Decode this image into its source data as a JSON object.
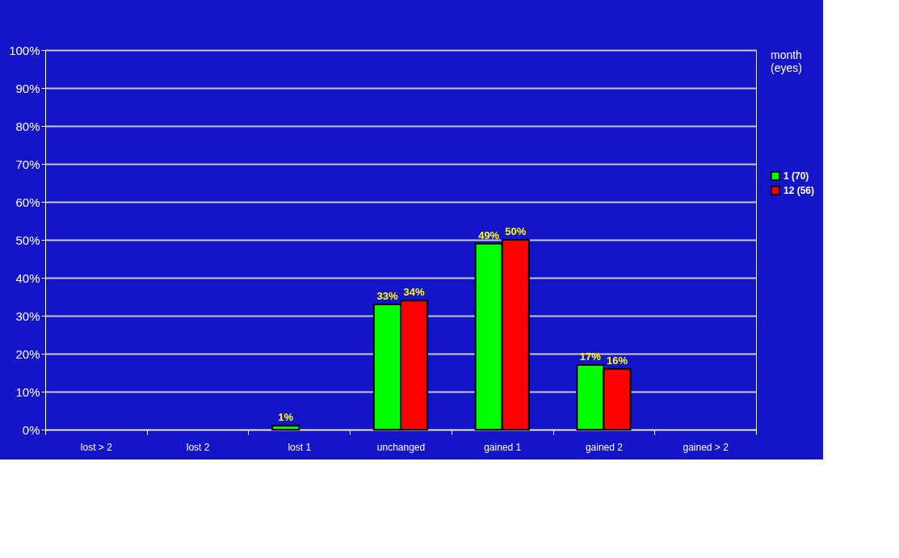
{
  "chart_data": {
    "type": "bar",
    "legend_title": "month\n(eyes)",
    "legend": "right",
    "grid": "y",
    "categories": [
      "lost > 2",
      "lost 2",
      "lost 1",
      "unchanged",
      "gained 1",
      "gained 2",
      "gained > 2"
    ],
    "ylim": [
      0,
      100
    ],
    "yticks": [
      {
        "value": 0,
        "label": "0%"
      },
      {
        "value": 10,
        "label": "10%"
      },
      {
        "value": 20,
        "label": "20%"
      },
      {
        "value": 30,
        "label": "30%"
      },
      {
        "value": 40,
        "label": "40%"
      },
      {
        "value": 50,
        "label": "50%"
      },
      {
        "value": 60,
        "label": "60%"
      },
      {
        "value": 70,
        "label": "70%"
      },
      {
        "value": 80,
        "label": "80%"
      },
      {
        "value": 90,
        "label": "90%"
      },
      {
        "value": 100,
        "label": "100%"
      }
    ],
    "series": [
      {
        "name": "1 (70)",
        "color": "#00ff00",
        "values": [
          null,
          null,
          1,
          33,
          49,
          17,
          null
        ],
        "value_labels": [
          null,
          null,
          "1%",
          "33%",
          "49%",
          "17%",
          null
        ]
      },
      {
        "name": "12 (56)",
        "color": "#ff0000",
        "values": [
          null,
          null,
          null,
          34,
          50,
          16,
          null
        ],
        "value_labels": [
          null,
          null,
          null,
          "34%",
          "50%",
          "16%",
          null
        ]
      }
    ]
  }
}
